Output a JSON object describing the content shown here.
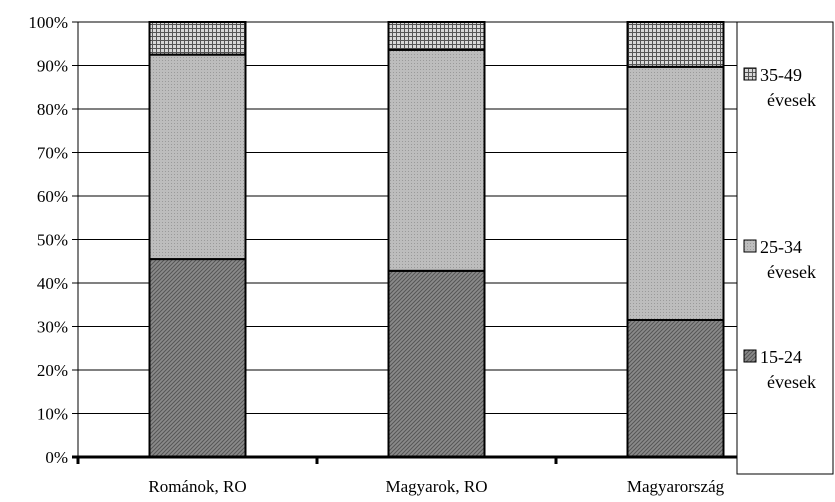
{
  "chart_data": {
    "type": "bar",
    "stacked": true,
    "percent": true,
    "categories": [
      "Románok, RO",
      "Magyarok, RO",
      "Magyarország"
    ],
    "series": [
      {
        "name": "15-24 évesek",
        "label_line1": "15-24",
        "label_line2": "évesek",
        "values": [
          45.5,
          42.8,
          31.5
        ],
        "pattern": "dark"
      },
      {
        "name": "25-34 évesek",
        "label_line1": "25-34",
        "label_line2": "évesek",
        "values": [
          47.0,
          50.8,
          58.2
        ],
        "pattern": "medium"
      },
      {
        "name": "35-49 évesek",
        "label_line1": "35-49",
        "label_line2": "évesek",
        "values": [
          7.5,
          6.4,
          10.3
        ],
        "pattern": "grid"
      }
    ],
    "title": "",
    "xlabel": "",
    "ylabel": "",
    "ylim": [
      0,
      100
    ],
    "yticks": [
      "0%",
      "10%",
      "20%",
      "30%",
      "40%",
      "50%",
      "60%",
      "70%",
      "80%",
      "90%",
      "100%"
    ],
    "grid": true,
    "legend_position": "right"
  }
}
